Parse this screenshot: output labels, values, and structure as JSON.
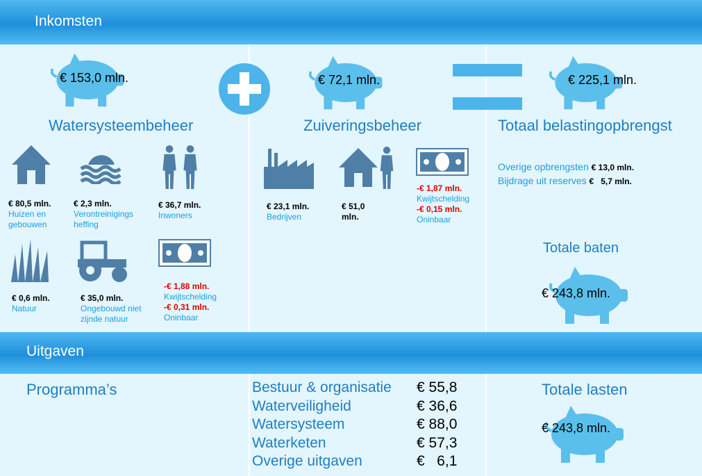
{
  "inkomsten": {
    "title": "Inkomsten",
    "watersysteem": {
      "amount": "€ 153,0 mln.",
      "label": "Watersysteembeheer",
      "items": [
        {
          "amount": "€ 80,5 mln.",
          "label": "Huizen en gebouwen"
        },
        {
          "amount": "€ 2,3 mln.",
          "label": "Verontreinigings heffing"
        },
        {
          "amount": "€ 36,7 mln.",
          "label": "Inwoners"
        },
        {
          "amount": "€ 0,6 mln.",
          "label": "Natuur"
        },
        {
          "amount": "€ 35,0 mln.",
          "label": "Ongebouwd niet zijnde natuur"
        }
      ],
      "deductions": [
        {
          "amount": "-€ 1,88 mln.",
          "label": "Kwijtschelding"
        },
        {
          "amount": "-€ 0,31 mln.",
          "label": "Oninbaar"
        }
      ]
    },
    "zuivering": {
      "amount": "€ 72,1 mln.",
      "label": "Zuiveringsbeheer",
      "items": [
        {
          "amount": "€ 23,1 mln.",
          "label": "Bedrijven"
        },
        {
          "amount": "€ 51,0 mln."
        }
      ],
      "deductions": [
        {
          "amount": "-€ 1,87 mln.",
          "label": "Kwijtschelding"
        },
        {
          "amount": "-€ 0,15 mln.",
          "label": "Oninbaar"
        }
      ]
    },
    "totaal": {
      "amount": "€ 225,1 mln.",
      "label": "Totaal belastingopbrengst",
      "other": [
        {
          "label": "Overige opbrengsten",
          "amount": "€ 13,0 mln."
        },
        {
          "label": "Bijdrage uit reserves",
          "amount": "€   5,7 mln."
        }
      ],
      "baten_label": "Totale baten",
      "baten_amount": "€ 243,8 mln."
    }
  },
  "uitgaven": {
    "title": "Uitgaven",
    "programs_label": "Programma’s",
    "programs": [
      {
        "name": "Bestuur & organisatie",
        "amount": "€ 55,8"
      },
      {
        "name": "Waterveiligheid",
        "amount": "€ 36,6"
      },
      {
        "name": "Watersysteem",
        "amount": "€ 88,0"
      },
      {
        "name": "Waterketen",
        "amount": "€ 57,3"
      },
      {
        "name": "Overige uitgaven",
        "amount": "€   6,1"
      }
    ],
    "lasten_label": "Totale lasten",
    "lasten_amount": "€ 243,8 mln."
  }
}
